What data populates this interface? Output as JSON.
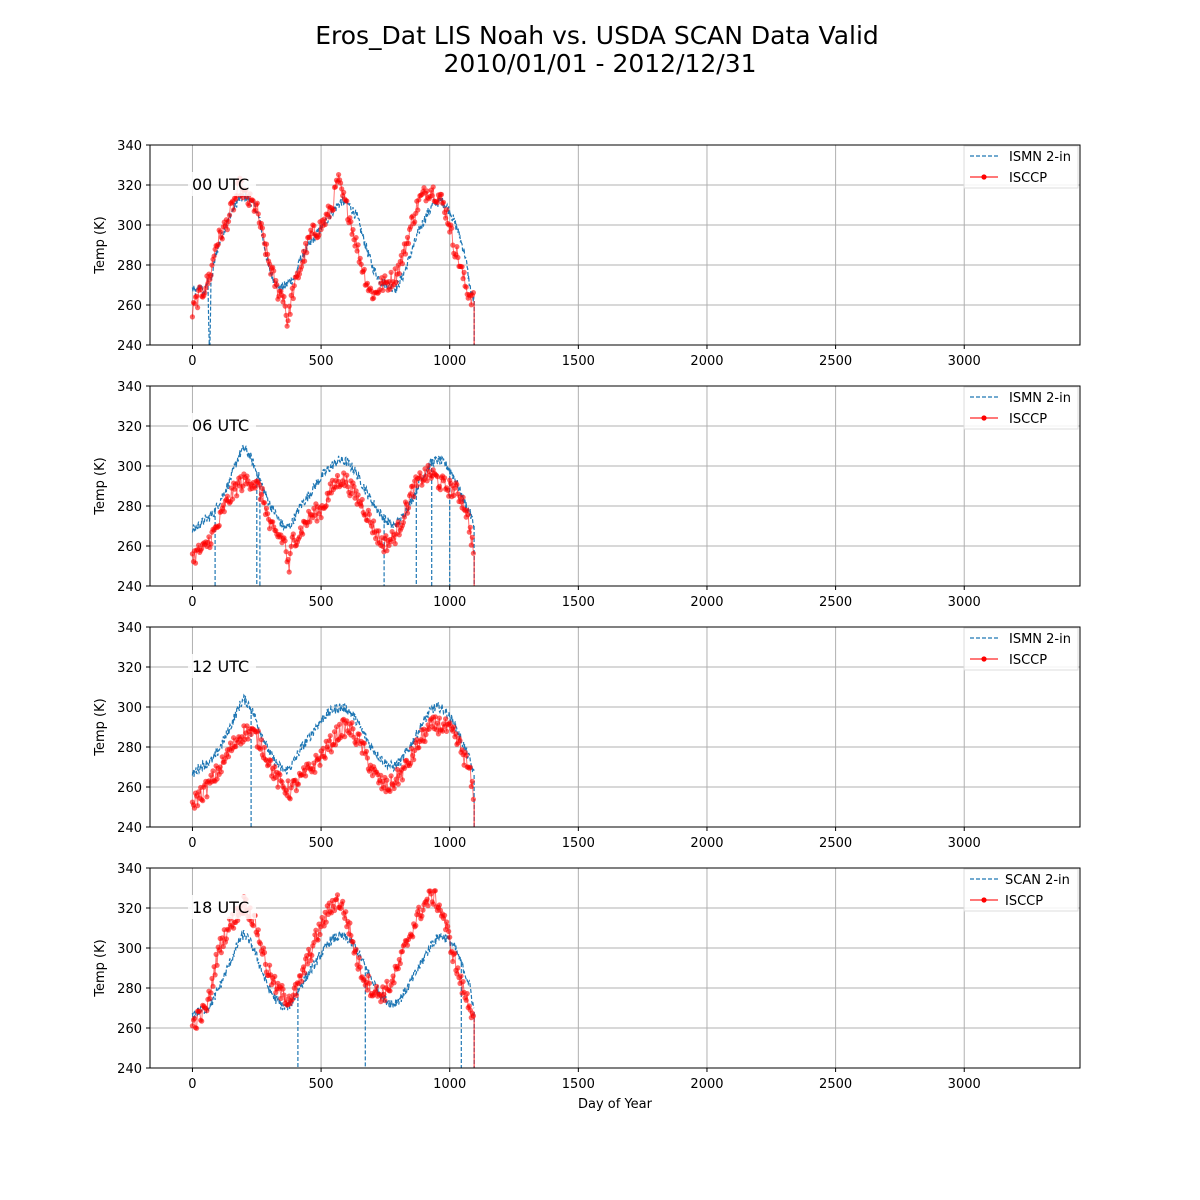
{
  "figure": {
    "title_line1": "Eros_Dat LIS Noah vs. USDA SCAN Data Valid",
    "title_line2": "2010/01/01 - 2012/12/31"
  },
  "colors": {
    "model": "#1f77b4",
    "obs": "#ff0000",
    "grid": "#b0b0b0"
  },
  "chart_data": [
    {
      "type": "line",
      "panel_label": "00 UTC",
      "xlabel": "",
      "ylabel": "Temp (K)",
      "xlim": [
        -165,
        3450
      ],
      "ylim": [
        240,
        340
      ],
      "xticks": [
        0,
        500,
        1000,
        1500,
        2000,
        2500,
        3000
      ],
      "yticks": [
        240,
        260,
        280,
        300,
        320,
        340
      ],
      "grid": true,
      "legend_position": "top-right",
      "series": [
        {
          "name": "ISMN 2-in",
          "style": "dashed-line",
          "x": [
            0,
            15,
            30,
            45,
            60,
            65,
            68,
            72,
            90,
            110,
            130,
            150,
            180,
            210,
            240,
            260,
            280,
            300,
            320,
            340,
            365,
            380,
            400,
            420,
            450,
            480,
            510,
            545,
            580,
            610,
            640,
            670,
            700,
            730,
            760,
            790,
            820,
            850,
            880,
            910,
            940,
            970,
            1000,
            1030,
            1060,
            1080,
            1095
          ],
          "y": [
            268,
            266,
            270,
            265,
            272,
            242,
            240,
            271,
            285,
            293,
            300,
            306,
            313,
            314,
            310,
            303,
            289,
            277,
            272,
            268,
            270,
            272,
            274,
            283,
            289,
            295,
            300,
            307,
            312,
            310,
            304,
            291,
            279,
            272,
            270,
            268,
            275,
            286,
            297,
            305,
            311,
            312,
            307,
            298,
            285,
            268,
            262
          ],
          "gaps_x": [
            65,
            1095
          ]
        },
        {
          "name": "ISCCP",
          "style": "line-with-markers",
          "x": [
            0,
            15,
            30,
            45,
            60,
            75,
            90,
            110,
            130,
            150,
            170,
            185,
            200,
            215,
            230,
            250,
            270,
            290,
            310,
            330,
            355,
            370,
            385,
            400,
            430,
            460,
            490,
            515,
            545,
            565,
            575,
            590,
            610,
            630,
            650,
            670,
            690,
            710,
            730,
            760,
            790,
            820,
            850,
            880,
            905,
            925,
            945,
            965,
            985,
            1000,
            1015,
            1030,
            1050,
            1065,
            1080,
            1095
          ],
          "y": [
            256,
            262,
            265,
            268,
            272,
            278,
            290,
            295,
            300,
            307,
            314,
            320,
            316,
            312,
            311,
            308,
            296,
            285,
            276,
            267,
            265,
            250,
            264,
            270,
            283,
            295,
            298,
            302,
            310,
            323,
            318,
            312,
            305,
            294,
            284,
            275,
            267,
            265,
            270,
            271,
            275,
            285,
            300,
            312,
            316,
            318,
            316,
            313,
            307,
            300,
            290,
            285,
            275,
            268,
            265,
            262
          ]
        }
      ]
    },
    {
      "type": "line",
      "panel_label": "06 UTC",
      "xlabel": "",
      "ylabel": "Temp (K)",
      "xlim": [
        -165,
        3450
      ],
      "ylim": [
        240,
        340
      ],
      "xticks": [
        0,
        500,
        1000,
        1500,
        2000,
        2500,
        3000
      ],
      "yticks": [
        240,
        260,
        280,
        300,
        320,
        340
      ],
      "grid": true,
      "legend_position": "top-right",
      "series": [
        {
          "name": "ISMN 2-in",
          "style": "dashed-line",
          "x": [
            0,
            20,
            40,
            60,
            80,
            100,
            120,
            140,
            160,
            180,
            200,
            220,
            240,
            260,
            280,
            300,
            320,
            340,
            360,
            380,
            400,
            420,
            450,
            480,
            510,
            540,
            570,
            600,
            630,
            660,
            690,
            720,
            750,
            780,
            810,
            840,
            870,
            900,
            930,
            960,
            990,
            1020,
            1050,
            1080,
            1095
          ],
          "y": [
            268,
            270,
            272,
            274,
            276,
            281,
            286,
            291,
            298,
            305,
            309,
            306,
            300,
            294,
            287,
            281,
            277,
            272,
            269,
            270,
            275,
            280,
            285,
            291,
            296,
            300,
            303,
            302,
            298,
            291,
            284,
            278,
            273,
            270,
            273,
            280,
            288,
            296,
            302,
            303,
            300,
            294,
            284,
            276,
            270
          ],
          "gaps_x": [
            88,
            250,
            262,
            745,
            870,
            930,
            1000,
            1095
          ]
        },
        {
          "name": "ISCCP",
          "style": "line-with-markers",
          "x": [
            0,
            15,
            30,
            45,
            60,
            80,
            100,
            120,
            140,
            160,
            180,
            200,
            220,
            240,
            260,
            280,
            300,
            320,
            340,
            360,
            375,
            390,
            410,
            440,
            470,
            500,
            520,
            540,
            560,
            580,
            600,
            620,
            640,
            660,
            680,
            700,
            720,
            740,
            760,
            780,
            800,
            820,
            840,
            860,
            880,
            900,
            920,
            940,
            960,
            980,
            1000,
            1020,
            1040,
            1060,
            1080,
            1095
          ],
          "y": [
            254,
            256,
            258,
            258,
            262,
            266,
            270,
            278,
            283,
            287,
            291,
            292,
            293,
            292,
            288,
            282,
            270,
            266,
            265,
            262,
            247,
            264,
            265,
            272,
            276,
            278,
            283,
            288,
            292,
            294,
            292,
            288,
            284,
            281,
            276,
            270,
            265,
            261,
            262,
            264,
            268,
            275,
            282,
            289,
            292,
            295,
            296,
            295,
            292,
            290,
            289,
            288,
            285,
            280,
            268,
            255
          ]
        }
      ]
    },
    {
      "type": "line",
      "panel_label": "12 UTC",
      "xlabel": "",
      "ylabel": "Temp (K)",
      "xlim": [
        -165,
        3450
      ],
      "ylim": [
        240,
        340
      ],
      "xticks": [
        0,
        500,
        1000,
        1500,
        2000,
        2500,
        3000
      ],
      "yticks": [
        240,
        260,
        280,
        300,
        320,
        340
      ],
      "grid": true,
      "legend_position": "top-right",
      "series": [
        {
          "name": "ISMN 2-in",
          "style": "dashed-line",
          "x": [
            0,
            20,
            40,
            60,
            80,
            100,
            120,
            140,
            160,
            180,
            200,
            220,
            240,
            260,
            280,
            300,
            320,
            340,
            360,
            380,
            400,
            420,
            450,
            480,
            510,
            540,
            570,
            600,
            630,
            660,
            690,
            720,
            750,
            780,
            810,
            840,
            870,
            900,
            930,
            960,
            990,
            1020,
            1050,
            1080,
            1095
          ],
          "y": [
            266,
            269,
            271,
            272,
            274,
            278,
            283,
            288,
            294,
            300,
            304,
            301,
            296,
            289,
            283,
            277,
            273,
            270,
            268,
            270,
            274,
            279,
            284,
            290,
            295,
            298,
            300,
            299,
            295,
            288,
            281,
            276,
            272,
            270,
            273,
            279,
            286,
            293,
            299,
            300,
            297,
            291,
            282,
            273,
            266
          ],
          "gaps_x": [
            228,
            1095
          ]
        },
        {
          "name": "ISCCP",
          "style": "line-with-markers",
          "x": [
            0,
            15,
            30,
            45,
            60,
            80,
            100,
            120,
            140,
            160,
            180,
            200,
            220,
            240,
            260,
            280,
            300,
            320,
            340,
            360,
            380,
            400,
            420,
            450,
            480,
            510,
            540,
            560,
            580,
            600,
            620,
            640,
            660,
            680,
            700,
            720,
            740,
            760,
            780,
            800,
            820,
            840,
            860,
            880,
            900,
            920,
            940,
            960,
            980,
            1000,
            1020,
            1040,
            1060,
            1080,
            1095
          ],
          "y": [
            252,
            254,
            256,
            258,
            260,
            264,
            268,
            272,
            277,
            281,
            285,
            287,
            288,
            286,
            283,
            278,
            272,
            266,
            262,
            260,
            258,
            261,
            264,
            268,
            272,
            277,
            282,
            286,
            289,
            290,
            288,
            284,
            280,
            274,
            268,
            264,
            261,
            260,
            262,
            265,
            268,
            272,
            277,
            282,
            286,
            289,
            291,
            291,
            290,
            288,
            285,
            280,
            274,
            266,
            252
          ]
        }
      ]
    },
    {
      "type": "line",
      "panel_label": "18 UTC",
      "xlabel": "Day of Year",
      "ylabel": "Temp (K)",
      "xlim": [
        -165,
        3450
      ],
      "ylim": [
        240,
        340
      ],
      "xticks": [
        0,
        500,
        1000,
        1500,
        2000,
        2500,
        3000
      ],
      "yticks": [
        240,
        260,
        280,
        300,
        320,
        340
      ],
      "grid": true,
      "legend_position": "top-right",
      "series": [
        {
          "name": "SCAN 2-in",
          "style": "dashed-line",
          "x": [
            0,
            20,
            40,
            60,
            80,
            100,
            120,
            140,
            160,
            180,
            200,
            220,
            240,
            260,
            280,
            300,
            320,
            340,
            360,
            380,
            400,
            420,
            450,
            480,
            510,
            540,
            570,
            600,
            630,
            660,
            690,
            720,
            750,
            780,
            810,
            840,
            870,
            900,
            930,
            960,
            990,
            1020,
            1050,
            1080,
            1095
          ],
          "y": [
            266,
            268,
            269,
            270,
            274,
            279,
            285,
            291,
            297,
            303,
            307,
            304,
            299,
            292,
            285,
            279,
            275,
            272,
            270,
            272,
            276,
            281,
            287,
            293,
            299,
            304,
            306,
            305,
            301,
            294,
            286,
            279,
            274,
            272,
            275,
            281,
            288,
            295,
            302,
            306,
            305,
            300,
            291,
            280,
            268
          ],
          "gaps_x": [
            410,
            672,
            1045,
            1095
          ]
        },
        {
          "name": "ISCCP",
          "style": "line-with-markers",
          "x": [
            0,
            15,
            30,
            45,
            60,
            80,
            100,
            120,
            140,
            160,
            180,
            200,
            215,
            230,
            250,
            270,
            290,
            310,
            330,
            350,
            370,
            390,
            410,
            430,
            460,
            490,
            520,
            545,
            565,
            585,
            605,
            625,
            645,
            665,
            685,
            705,
            725,
            750,
            780,
            810,
            840,
            870,
            895,
            915,
            935,
            955,
            975,
            995,
            1015,
            1035,
            1055,
            1075,
            1095
          ],
          "y": [
            262,
            264,
            266,
            268,
            272,
            285,
            298,
            305,
            310,
            314,
            318,
            322,
            320,
            316,
            310,
            300,
            290,
            284,
            279,
            277,
            275,
            276,
            280,
            288,
            298,
            308,
            316,
            322,
            324,
            320,
            312,
            302,
            292,
            286,
            282,
            278,
            277,
            278,
            284,
            294,
            305,
            314,
            320,
            324,
            326,
            322,
            316,
            306,
            296,
            286,
            278,
            272,
            266
          ]
        }
      ]
    }
  ]
}
